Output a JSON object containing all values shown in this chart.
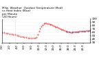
{
  "title_line1": "Milw  Weather  Outdoor Temperature (Red)",
  "title_line2": "vs Heat Index (Blue)",
  "title_line3": "per Minute",
  "title_line4": "(24 Hours)",
  "bg_color": "#ffffff",
  "plot_bg_color": "#ffffff",
  "line_color_red": "#ff0000",
  "line_color_blue": "#0055cc",
  "grid_color": "#cccccc",
  "title_fontsize": 3.0,
  "tick_fontsize": 3.0,
  "ylim": [
    30,
    100
  ],
  "yticks": [
    30,
    40,
    50,
    60,
    70,
    80,
    90,
    100
  ],
  "vline_x": 210,
  "red_data_x": [
    0,
    30,
    60,
    90,
    120,
    150,
    180,
    210,
    240,
    270,
    300,
    330,
    360,
    390,
    420,
    450,
    480,
    510,
    540,
    560,
    580,
    600,
    620,
    640,
    660,
    680,
    700,
    720,
    740,
    760,
    780,
    800,
    820,
    840,
    860,
    880,
    900,
    920,
    940,
    960,
    980,
    1000,
    1020,
    1040,
    1060,
    1080,
    1100,
    1120,
    1140,
    1160,
    1180,
    1200,
    1220,
    1240,
    1260,
    1280,
    1300,
    1320,
    1340,
    1360,
    1380,
    1400,
    1420,
    1439
  ],
  "red_data_y": [
    60,
    59,
    58,
    57,
    56,
    55,
    54,
    53,
    52,
    50,
    48,
    47,
    46,
    45,
    44,
    43,
    43,
    43,
    44,
    46,
    53,
    63,
    71,
    78,
    82,
    85,
    87,
    87,
    86,
    85,
    84,
    83,
    81,
    79,
    78,
    76,
    75,
    73,
    71,
    70,
    68,
    67,
    65,
    64,
    63,
    62,
    61,
    60,
    60,
    61,
    61,
    62,
    62,
    62,
    63,
    63,
    63,
    64,
    64,
    64,
    65,
    65,
    65,
    65
  ],
  "blue_data_x": [
    1050,
    1100,
    1150,
    1200,
    1250,
    1300,
    1350,
    1400,
    1439
  ],
  "blue_data_y": [
    61,
    61,
    62,
    62,
    62,
    63,
    63,
    64,
    65
  ],
  "xtick_positions": [
    0,
    120,
    240,
    360,
    480,
    600,
    720,
    840,
    960,
    1080,
    1200,
    1320
  ],
  "xtick_labels": [
    "0:0",
    "2:0",
    "4:0",
    "6:0",
    "8:0",
    "10:0",
    "12:0",
    "14:0",
    "16:0",
    "18:0",
    "20:0",
    "22:0"
  ]
}
